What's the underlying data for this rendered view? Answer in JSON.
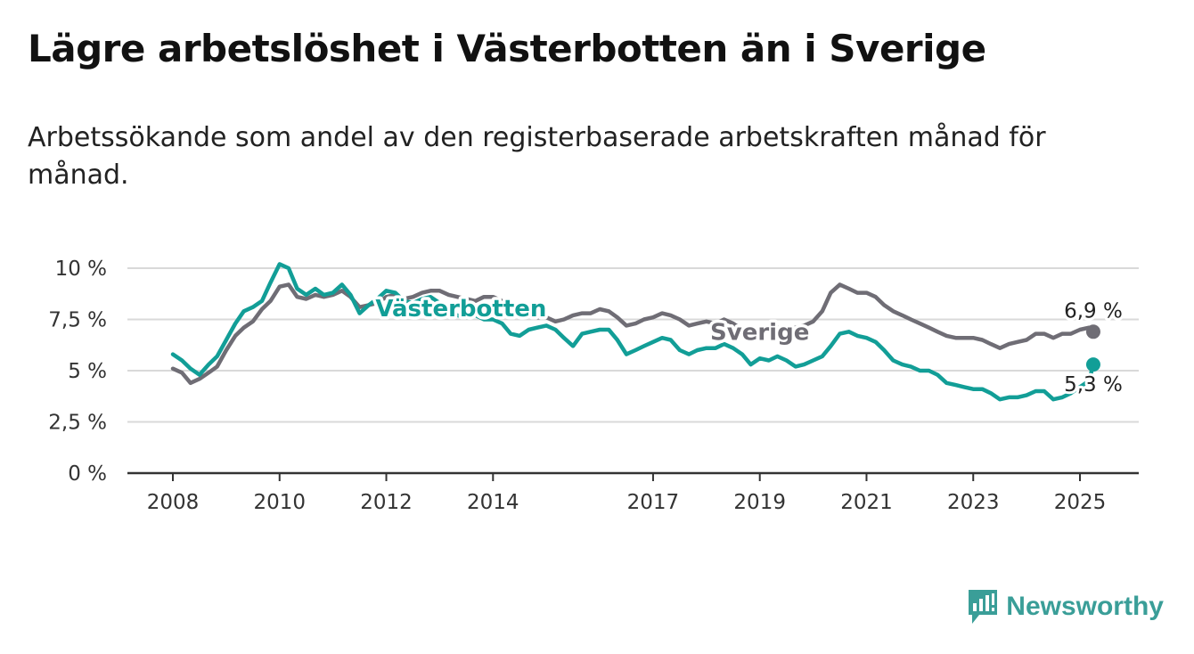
{
  "title": "Lägre arbetslöshet i Västerbotten än i Sverige",
  "subtitle": "Arbetssökande som andel av den registerbaserade arbetskraften månad för månad.",
  "brand": {
    "name": "Newsworthy",
    "color": "#3a9e98",
    "icon": "bar-chart-exclamation-icon"
  },
  "chart_data": {
    "type": "line",
    "title": "Lägre arbetslöshet i Västerbotten än i Sverige",
    "subtitle": "Arbetssökande som andel av den registerbaserade arbetskraften månad för månad.",
    "xlabel": "",
    "ylabel": "",
    "xlim": [
      2007.75,
      2026.1
    ],
    "ylim": [
      0,
      10
    ],
    "x_ticks": [
      "2008",
      "2010",
      "2012",
      "2014",
      "2017",
      "2019",
      "2021",
      "2023",
      "2025"
    ],
    "y_ticks": [
      "0 %",
      "2,5 %",
      "5 %",
      "7,5 %",
      "10 %"
    ],
    "grid": true,
    "legend": "inline labels",
    "series": [
      {
        "name": "Sverige",
        "color": "#6f6d75",
        "end_label": "6,9 %",
        "points": [
          [
            2008.0,
            5.1
          ],
          [
            2008.17,
            4.9
          ],
          [
            2008.33,
            4.4
          ],
          [
            2008.5,
            4.6
          ],
          [
            2008.67,
            4.9
          ],
          [
            2008.83,
            5.2
          ],
          [
            2009.0,
            6.0
          ],
          [
            2009.17,
            6.7
          ],
          [
            2009.33,
            7.1
          ],
          [
            2009.5,
            7.4
          ],
          [
            2009.67,
            8.0
          ],
          [
            2009.83,
            8.4
          ],
          [
            2010.0,
            9.1
          ],
          [
            2010.17,
            9.2
          ],
          [
            2010.33,
            8.6
          ],
          [
            2010.5,
            8.5
          ],
          [
            2010.67,
            8.7
          ],
          [
            2010.83,
            8.6
          ],
          [
            2011.0,
            8.7
          ],
          [
            2011.17,
            8.9
          ],
          [
            2011.33,
            8.6
          ],
          [
            2011.5,
            8.1
          ],
          [
            2011.67,
            8.2
          ],
          [
            2011.83,
            8.3
          ],
          [
            2012.0,
            8.6
          ],
          [
            2012.17,
            8.7
          ],
          [
            2012.33,
            8.5
          ],
          [
            2012.5,
            8.6
          ],
          [
            2012.67,
            8.8
          ],
          [
            2012.83,
            8.9
          ],
          [
            2013.0,
            8.9
          ],
          [
            2013.17,
            8.7
          ],
          [
            2013.33,
            8.6
          ],
          [
            2013.5,
            8.5
          ],
          [
            2013.67,
            8.4
          ],
          [
            2013.83,
            8.6
          ],
          [
            2014.0,
            8.6
          ],
          [
            2014.17,
            8.4
          ],
          [
            2014.33,
            8.1
          ],
          [
            2014.5,
            7.9
          ],
          [
            2014.67,
            7.7
          ],
          [
            2014.83,
            7.6
          ],
          [
            2015.0,
            7.6
          ],
          [
            2015.17,
            7.4
          ],
          [
            2015.33,
            7.5
          ],
          [
            2015.5,
            7.7
          ],
          [
            2015.67,
            7.8
          ],
          [
            2015.83,
            7.8
          ],
          [
            2016.0,
            8.0
          ],
          [
            2016.17,
            7.9
          ],
          [
            2016.33,
            7.6
          ],
          [
            2016.5,
            7.2
          ],
          [
            2016.67,
            7.3
          ],
          [
            2016.83,
            7.5
          ],
          [
            2017.0,
            7.6
          ],
          [
            2017.17,
            7.8
          ],
          [
            2017.33,
            7.7
          ],
          [
            2017.5,
            7.5
          ],
          [
            2017.67,
            7.2
          ],
          [
            2017.83,
            7.3
          ],
          [
            2018.0,
            7.4
          ],
          [
            2018.17,
            7.3
          ],
          [
            2018.33,
            7.5
          ],
          [
            2018.5,
            7.3
          ],
          [
            2018.67,
            7.0
          ],
          [
            2018.83,
            6.8
          ],
          [
            2019.0,
            6.9
          ],
          [
            2019.17,
            7.0
          ],
          [
            2019.33,
            7.1
          ],
          [
            2019.5,
            7.1
          ],
          [
            2019.67,
            7.1
          ],
          [
            2019.83,
            7.2
          ],
          [
            2020.0,
            7.4
          ],
          [
            2020.17,
            7.9
          ],
          [
            2020.33,
            8.8
          ],
          [
            2020.5,
            9.2
          ],
          [
            2020.67,
            9.0
          ],
          [
            2020.83,
            8.8
          ],
          [
            2021.0,
            8.8
          ],
          [
            2021.17,
            8.6
          ],
          [
            2021.33,
            8.2
          ],
          [
            2021.5,
            7.9
          ],
          [
            2021.67,
            7.7
          ],
          [
            2021.83,
            7.5
          ],
          [
            2022.0,
            7.3
          ],
          [
            2022.17,
            7.1
          ],
          [
            2022.33,
            6.9
          ],
          [
            2022.5,
            6.7
          ],
          [
            2022.67,
            6.6
          ],
          [
            2022.83,
            6.6
          ],
          [
            2023.0,
            6.6
          ],
          [
            2023.17,
            6.5
          ],
          [
            2023.33,
            6.3
          ],
          [
            2023.5,
            6.1
          ],
          [
            2023.67,
            6.3
          ],
          [
            2023.83,
            6.4
          ],
          [
            2024.0,
            6.5
          ],
          [
            2024.17,
            6.8
          ],
          [
            2024.33,
            6.8
          ],
          [
            2024.5,
            6.6
          ],
          [
            2024.67,
            6.8
          ],
          [
            2024.83,
            6.8
          ],
          [
            2025.0,
            7.0
          ],
          [
            2025.17,
            7.1
          ],
          [
            2025.25,
            6.9
          ]
        ]
      },
      {
        "name": "Västerbotten",
        "color": "#129e97",
        "end_label": "5,3 %",
        "points": [
          [
            2008.0,
            5.8
          ],
          [
            2008.17,
            5.5
          ],
          [
            2008.33,
            5.1
          ],
          [
            2008.5,
            4.8
          ],
          [
            2008.67,
            5.3
          ],
          [
            2008.83,
            5.7
          ],
          [
            2009.0,
            6.5
          ],
          [
            2009.17,
            7.3
          ],
          [
            2009.33,
            7.9
          ],
          [
            2009.5,
            8.1
          ],
          [
            2009.67,
            8.4
          ],
          [
            2009.83,
            9.3
          ],
          [
            2010.0,
            10.2
          ],
          [
            2010.17,
            10.0
          ],
          [
            2010.33,
            9.0
          ],
          [
            2010.5,
            8.7
          ],
          [
            2010.67,
            9.0
          ],
          [
            2010.83,
            8.7
          ],
          [
            2011.0,
            8.8
          ],
          [
            2011.17,
            9.2
          ],
          [
            2011.33,
            8.7
          ],
          [
            2011.5,
            7.8
          ],
          [
            2011.67,
            8.2
          ],
          [
            2011.83,
            8.5
          ],
          [
            2012.0,
            8.9
          ],
          [
            2012.17,
            8.8
          ],
          [
            2012.33,
            8.4
          ],
          [
            2012.5,
            8.3
          ],
          [
            2012.67,
            8.5
          ],
          [
            2012.83,
            8.6
          ],
          [
            2013.0,
            8.3
          ],
          [
            2013.17,
            7.9
          ],
          [
            2013.33,
            7.7
          ],
          [
            2013.5,
            7.6
          ],
          [
            2013.67,
            7.7
          ],
          [
            2013.83,
            7.5
          ],
          [
            2014.0,
            7.5
          ],
          [
            2014.17,
            7.3
          ],
          [
            2014.33,
            6.8
          ],
          [
            2014.5,
            6.7
          ],
          [
            2014.67,
            7.0
          ],
          [
            2014.83,
            7.1
          ],
          [
            2015.0,
            7.2
          ],
          [
            2015.17,
            7.0
          ],
          [
            2015.33,
            6.6
          ],
          [
            2015.5,
            6.2
          ],
          [
            2015.67,
            6.8
          ],
          [
            2015.83,
            6.9
          ],
          [
            2016.0,
            7.0
          ],
          [
            2016.17,
            7.0
          ],
          [
            2016.33,
            6.5
          ],
          [
            2016.5,
            5.8
          ],
          [
            2016.67,
            6.0
          ],
          [
            2016.83,
            6.2
          ],
          [
            2017.0,
            6.4
          ],
          [
            2017.17,
            6.6
          ],
          [
            2017.33,
            6.5
          ],
          [
            2017.5,
            6.0
          ],
          [
            2017.67,
            5.8
          ],
          [
            2017.83,
            6.0
          ],
          [
            2018.0,
            6.1
          ],
          [
            2018.17,
            6.1
          ],
          [
            2018.33,
            6.3
          ],
          [
            2018.5,
            6.1
          ],
          [
            2018.67,
            5.8
          ],
          [
            2018.83,
            5.3
          ],
          [
            2019.0,
            5.6
          ],
          [
            2019.17,
            5.5
          ],
          [
            2019.33,
            5.7
          ],
          [
            2019.5,
            5.5
          ],
          [
            2019.67,
            5.2
          ],
          [
            2019.83,
            5.3
          ],
          [
            2020.0,
            5.5
          ],
          [
            2020.17,
            5.7
          ],
          [
            2020.33,
            6.2
          ],
          [
            2020.5,
            6.8
          ],
          [
            2020.67,
            6.9
          ],
          [
            2020.83,
            6.7
          ],
          [
            2021.0,
            6.6
          ],
          [
            2021.17,
            6.4
          ],
          [
            2021.33,
            6.0
          ],
          [
            2021.5,
            5.5
          ],
          [
            2021.67,
            5.3
          ],
          [
            2021.83,
            5.2
          ],
          [
            2022.0,
            5.0
          ],
          [
            2022.17,
            5.0
          ],
          [
            2022.33,
            4.8
          ],
          [
            2022.5,
            4.4
          ],
          [
            2022.67,
            4.3
          ],
          [
            2022.83,
            4.2
          ],
          [
            2023.0,
            4.1
          ],
          [
            2023.17,
            4.1
          ],
          [
            2023.33,
            3.9
          ],
          [
            2023.5,
            3.6
          ],
          [
            2023.67,
            3.7
          ],
          [
            2023.83,
            3.7
          ],
          [
            2024.0,
            3.8
          ],
          [
            2024.17,
            4.0
          ],
          [
            2024.33,
            4.0
          ],
          [
            2024.5,
            3.6
          ],
          [
            2024.67,
            3.7
          ],
          [
            2024.83,
            3.9
          ],
          [
            2025.0,
            4.2
          ],
          [
            2025.17,
            4.5
          ],
          [
            2025.25,
            5.3
          ]
        ]
      }
    ]
  }
}
